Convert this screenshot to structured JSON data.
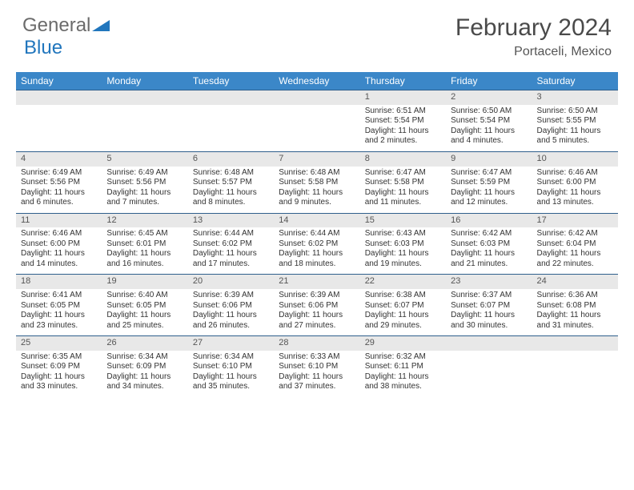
{
  "logo": {
    "general": "General",
    "blue": "Blue"
  },
  "title": "February 2024",
  "location": "Portaceli, Mexico",
  "colors": {
    "header_bg": "#3b87c8",
    "header_text": "#ffffff",
    "date_bg": "#e8e8e8",
    "row_border": "#2f5f8c",
    "title_color": "#4a4a4a",
    "body_text": "#333333"
  },
  "day_headers": [
    "Sunday",
    "Monday",
    "Tuesday",
    "Wednesday",
    "Thursday",
    "Friday",
    "Saturday"
  ],
  "weeks": [
    [
      null,
      null,
      null,
      null,
      {
        "n": "1",
        "sr": "Sunrise: 6:51 AM",
        "ss": "Sunset: 5:54 PM",
        "dl": "Daylight: 11 hours and 2 minutes."
      },
      {
        "n": "2",
        "sr": "Sunrise: 6:50 AM",
        "ss": "Sunset: 5:54 PM",
        "dl": "Daylight: 11 hours and 4 minutes."
      },
      {
        "n": "3",
        "sr": "Sunrise: 6:50 AM",
        "ss": "Sunset: 5:55 PM",
        "dl": "Daylight: 11 hours and 5 minutes."
      }
    ],
    [
      {
        "n": "4",
        "sr": "Sunrise: 6:49 AM",
        "ss": "Sunset: 5:56 PM",
        "dl": "Daylight: 11 hours and 6 minutes."
      },
      {
        "n": "5",
        "sr": "Sunrise: 6:49 AM",
        "ss": "Sunset: 5:56 PM",
        "dl": "Daylight: 11 hours and 7 minutes."
      },
      {
        "n": "6",
        "sr": "Sunrise: 6:48 AM",
        "ss": "Sunset: 5:57 PM",
        "dl": "Daylight: 11 hours and 8 minutes."
      },
      {
        "n": "7",
        "sr": "Sunrise: 6:48 AM",
        "ss": "Sunset: 5:58 PM",
        "dl": "Daylight: 11 hours and 9 minutes."
      },
      {
        "n": "8",
        "sr": "Sunrise: 6:47 AM",
        "ss": "Sunset: 5:58 PM",
        "dl": "Daylight: 11 hours and 11 minutes."
      },
      {
        "n": "9",
        "sr": "Sunrise: 6:47 AM",
        "ss": "Sunset: 5:59 PM",
        "dl": "Daylight: 11 hours and 12 minutes."
      },
      {
        "n": "10",
        "sr": "Sunrise: 6:46 AM",
        "ss": "Sunset: 6:00 PM",
        "dl": "Daylight: 11 hours and 13 minutes."
      }
    ],
    [
      {
        "n": "11",
        "sr": "Sunrise: 6:46 AM",
        "ss": "Sunset: 6:00 PM",
        "dl": "Daylight: 11 hours and 14 minutes."
      },
      {
        "n": "12",
        "sr": "Sunrise: 6:45 AM",
        "ss": "Sunset: 6:01 PM",
        "dl": "Daylight: 11 hours and 16 minutes."
      },
      {
        "n": "13",
        "sr": "Sunrise: 6:44 AM",
        "ss": "Sunset: 6:02 PM",
        "dl": "Daylight: 11 hours and 17 minutes."
      },
      {
        "n": "14",
        "sr": "Sunrise: 6:44 AM",
        "ss": "Sunset: 6:02 PM",
        "dl": "Daylight: 11 hours and 18 minutes."
      },
      {
        "n": "15",
        "sr": "Sunrise: 6:43 AM",
        "ss": "Sunset: 6:03 PM",
        "dl": "Daylight: 11 hours and 19 minutes."
      },
      {
        "n": "16",
        "sr": "Sunrise: 6:42 AM",
        "ss": "Sunset: 6:03 PM",
        "dl": "Daylight: 11 hours and 21 minutes."
      },
      {
        "n": "17",
        "sr": "Sunrise: 6:42 AM",
        "ss": "Sunset: 6:04 PM",
        "dl": "Daylight: 11 hours and 22 minutes."
      }
    ],
    [
      {
        "n": "18",
        "sr": "Sunrise: 6:41 AM",
        "ss": "Sunset: 6:05 PM",
        "dl": "Daylight: 11 hours and 23 minutes."
      },
      {
        "n": "19",
        "sr": "Sunrise: 6:40 AM",
        "ss": "Sunset: 6:05 PM",
        "dl": "Daylight: 11 hours and 25 minutes."
      },
      {
        "n": "20",
        "sr": "Sunrise: 6:39 AM",
        "ss": "Sunset: 6:06 PM",
        "dl": "Daylight: 11 hours and 26 minutes."
      },
      {
        "n": "21",
        "sr": "Sunrise: 6:39 AM",
        "ss": "Sunset: 6:06 PM",
        "dl": "Daylight: 11 hours and 27 minutes."
      },
      {
        "n": "22",
        "sr": "Sunrise: 6:38 AM",
        "ss": "Sunset: 6:07 PM",
        "dl": "Daylight: 11 hours and 29 minutes."
      },
      {
        "n": "23",
        "sr": "Sunrise: 6:37 AM",
        "ss": "Sunset: 6:07 PM",
        "dl": "Daylight: 11 hours and 30 minutes."
      },
      {
        "n": "24",
        "sr": "Sunrise: 6:36 AM",
        "ss": "Sunset: 6:08 PM",
        "dl": "Daylight: 11 hours and 31 minutes."
      }
    ],
    [
      {
        "n": "25",
        "sr": "Sunrise: 6:35 AM",
        "ss": "Sunset: 6:09 PM",
        "dl": "Daylight: 11 hours and 33 minutes."
      },
      {
        "n": "26",
        "sr": "Sunrise: 6:34 AM",
        "ss": "Sunset: 6:09 PM",
        "dl": "Daylight: 11 hours and 34 minutes."
      },
      {
        "n": "27",
        "sr": "Sunrise: 6:34 AM",
        "ss": "Sunset: 6:10 PM",
        "dl": "Daylight: 11 hours and 35 minutes."
      },
      {
        "n": "28",
        "sr": "Sunrise: 6:33 AM",
        "ss": "Sunset: 6:10 PM",
        "dl": "Daylight: 11 hours and 37 minutes."
      },
      {
        "n": "29",
        "sr": "Sunrise: 6:32 AM",
        "ss": "Sunset: 6:11 PM",
        "dl": "Daylight: 11 hours and 38 minutes."
      },
      null,
      null
    ]
  ]
}
